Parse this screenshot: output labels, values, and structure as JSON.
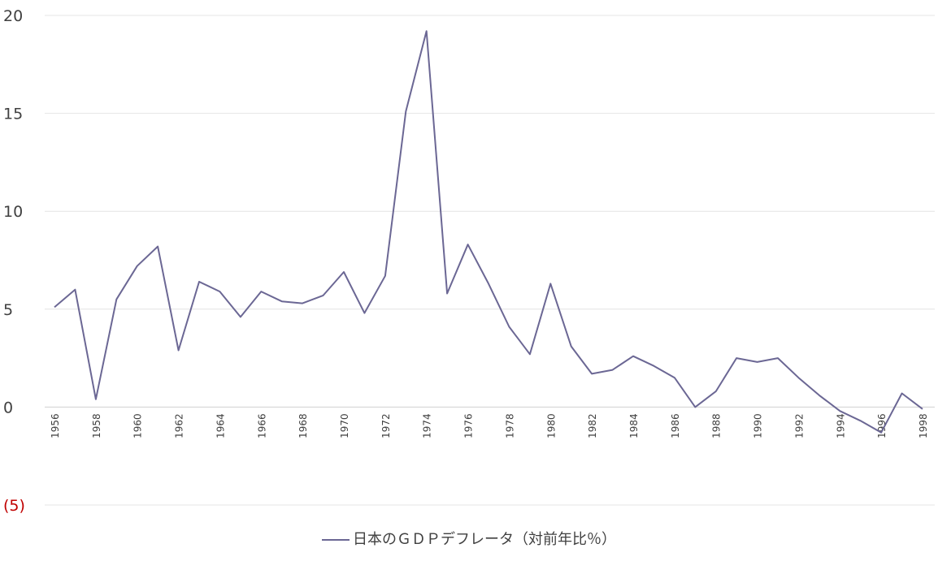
{
  "chart_data": {
    "type": "line",
    "title": "",
    "xlabel": "",
    "ylabel": "",
    "ylim": [
      -5,
      20
    ],
    "yticks": [
      {
        "value": 20,
        "label": "20"
      },
      {
        "value": 15,
        "label": "15"
      },
      {
        "value": 10,
        "label": "10"
      },
      {
        "value": 5,
        "label": "5"
      },
      {
        "value": 0,
        "label": "0"
      },
      {
        "value": -5,
        "label": "(5)"
      }
    ],
    "x": [
      1956,
      1957,
      1958,
      1959,
      1960,
      1961,
      1962,
      1963,
      1964,
      1965,
      1966,
      1967,
      1968,
      1969,
      1970,
      1971,
      1972,
      1973,
      1974,
      1975,
      1976,
      1977,
      1978,
      1979,
      1980,
      1981,
      1982,
      1983,
      1984,
      1985,
      1986,
      1987,
      1988,
      1989,
      1990,
      1991,
      1992,
      1993,
      1994,
      1995,
      1996,
      1997,
      1998
    ],
    "xtick_labels": [
      "1956",
      "1958",
      "1960",
      "1962",
      "1964",
      "1966",
      "1968",
      "1970",
      "1972",
      "1974",
      "1976",
      "1978",
      "1980",
      "1982",
      "1984",
      "1986",
      "1988",
      "1990",
      "1992",
      "1994",
      "1996",
      "1998"
    ],
    "series": [
      {
        "name": "日本のＧＤＰデフレータ（対前年比％）",
        "color": "#6b6794",
        "values": [
          5.1,
          6.0,
          0.4,
          5.5,
          7.2,
          8.2,
          2.9,
          6.4,
          5.9,
          4.6,
          5.9,
          5.4,
          5.3,
          5.7,
          6.9,
          4.8,
          6.7,
          15.1,
          19.2,
          5.8,
          8.3,
          6.3,
          4.1,
          2.7,
          6.3,
          3.1,
          1.7,
          1.9,
          2.6,
          2.1,
          1.5,
          0.0,
          0.8,
          2.5,
          2.3,
          2.5,
          1.5,
          0.6,
          -0.2,
          -0.7,
          -1.3,
          0.7,
          -0.1
        ]
      }
    ],
    "grid": true,
    "legend_position": "bottom",
    "negative_label_color": "#c00000"
  }
}
